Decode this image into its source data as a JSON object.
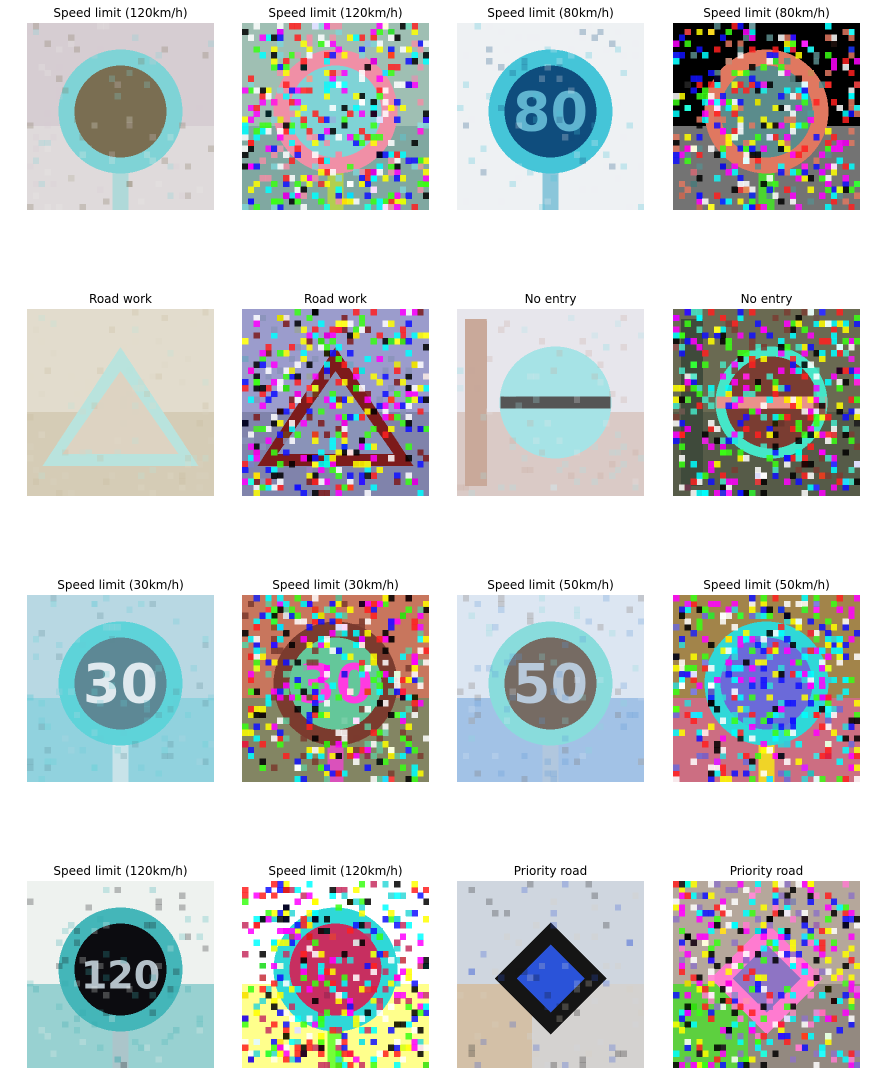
{
  "figure": {
    "panels": [
      {
        "title": "Speed limit (120km/h)",
        "variant": "original",
        "scene": "sign-round",
        "colors": {
          "bg": "#d6cdd2",
          "bg2": "#ebeae6",
          "ring": "#7fd3d6",
          "fill": "#7a6e52",
          "accent": "#9ad8d8"
        }
      },
      {
        "title": "Speed limit (120km/h)",
        "variant": "perturbed",
        "scene": "sign-round",
        "colors": {
          "bg": "#9fbfb3",
          "bg2": "#5b8c8c",
          "ring": "#f08fa6",
          "fill": "#7fd3d6",
          "accent": "#c8e02c"
        }
      },
      {
        "title": "Speed limit (80km/h)",
        "variant": "original",
        "scene": "sign-round",
        "colors": {
          "bg": "#eef1f3",
          "bg2": "#eef1f3",
          "ring": "#45c5d8",
          "fill": "#0f4d7d",
          "accent": "#5fb3cf"
        },
        "text": "80"
      },
      {
        "title": "Speed limit (80km/h)",
        "variant": "perturbed",
        "scene": "sign-round",
        "colors": {
          "bg": "#000000",
          "bg2": "#ffffff",
          "ring": "#e07860",
          "fill": "#5b8c8c",
          "accent": "#39ff14"
        }
      },
      {
        "title": "Road work",
        "variant": "original",
        "scene": "triangle",
        "colors": {
          "bg": "#e2dccd",
          "bg2": "#c6b89b",
          "ring": "#b9e3dd",
          "fill": "#ddd3c2",
          "accent": "#b5a98f"
        }
      },
      {
        "title": "Road work",
        "variant": "perturbed",
        "scene": "triangle",
        "colors": {
          "bg": "#9b9ccc",
          "bg2": "#5f6583",
          "ring": "#7d1b1b",
          "fill": "#8a93b8",
          "accent": "#39ff14"
        }
      },
      {
        "title": "No entry",
        "variant": "original",
        "scene": "no-entry",
        "colors": {
          "bg": "#e7e6ec",
          "bg2": "#c9a99a",
          "ring": "#a6e3e6",
          "fill": "#a6e3e6",
          "accent": "#555555"
        }
      },
      {
        "title": "No entry",
        "variant": "perturbed",
        "scene": "no-entry",
        "colors": {
          "bg": "#6a6a52",
          "bg2": "#3f4a3b",
          "ring": "#45e6c8",
          "fill": "#7a3d32",
          "accent": "#e9928a"
        }
      },
      {
        "title": "Speed limit (30km/h)",
        "variant": "original",
        "scene": "sign-round",
        "colors": {
          "bg": "#b8d8e3",
          "bg2": "#62cdd6",
          "ring": "#5ed3d9",
          "fill": "#5d8895",
          "accent": "#dfe9ee"
        },
        "text": "30"
      },
      {
        "title": "Speed limit (30km/h)",
        "variant": "perturbed",
        "scene": "sign-round",
        "colors": {
          "bg": "#c8765d",
          "bg2": "#2e9a6b",
          "ring": "#7b3b2e",
          "fill": "#64c79a",
          "accent": "#ff3be1"
        },
        "text": "30"
      },
      {
        "title": "Speed limit (50km/h)",
        "variant": "original",
        "scene": "sign-round",
        "colors": {
          "bg": "#dce6f2",
          "bg2": "#5c97d6",
          "ring": "#89dcdc",
          "fill": "#766b63",
          "accent": "#b8c9da"
        },
        "text": "50"
      },
      {
        "title": "Speed limit (50km/h)",
        "variant": "perturbed",
        "scene": "sign-round",
        "colors": {
          "bg": "#a2844a",
          "bg2": "#ff55c8",
          "ring": "#2fd8d8",
          "fill": "#6b6ad9",
          "accent": "#ffff00"
        }
      },
      {
        "title": "Speed limit (120km/h)",
        "variant": "original",
        "scene": "sign-round",
        "colors": {
          "bg": "#eef2ef",
          "bg2": "#2fa9ad",
          "ring": "#44b6b9",
          "fill": "#0c0c10",
          "accent": "#b3c0c8"
        },
        "text": "120"
      },
      {
        "title": "Speed limit (120km/h)",
        "variant": "perturbed",
        "scene": "sign-round",
        "colors": {
          "bg": "#ffffff",
          "bg2": "#ffff00",
          "ring": "#2fd8d8",
          "fill": "#c72f60",
          "accent": "#39ff14"
        }
      },
      {
        "title": "Priority road",
        "variant": "original",
        "scene": "diamond",
        "colors": {
          "bg": "#cfd6df",
          "bg2": "#d9cfbe",
          "ring": "#151515",
          "fill": "#2a53d9",
          "accent": "#d2b48c"
        }
      },
      {
        "title": "Priority road",
        "variant": "perturbed",
        "scene": "diamond",
        "colors": {
          "bg": "#b5a79b",
          "bg2": "#6b6660",
          "ring": "#ff7bd0",
          "fill": "#8e74c4",
          "accent": "#39ff14"
        }
      }
    ]
  }
}
